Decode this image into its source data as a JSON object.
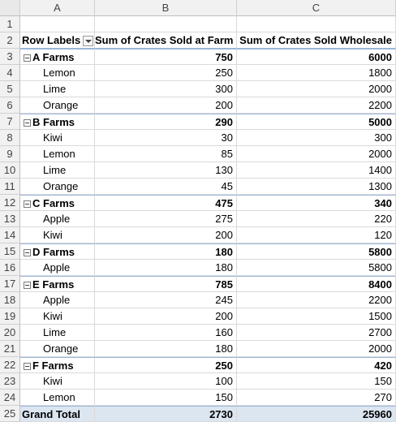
{
  "columns": [
    "A",
    "B",
    "C"
  ],
  "pivot": {
    "header": {
      "row_labels": "Row Labels",
      "col_b": "Sum of Crates Sold at Farm",
      "col_c": "Sum of Crates Sold Wholesale"
    },
    "grand_total": {
      "label": "Grand Total",
      "farm": "2730",
      "wholesale": "25960"
    }
  },
  "row_numbers": [
    "1",
    "2",
    "3",
    "4",
    "5",
    "6",
    "7",
    "8",
    "9",
    "10",
    "11",
    "12",
    "13",
    "14",
    "15",
    "16",
    "17",
    "18",
    "19",
    "20",
    "21",
    "22",
    "23",
    "24",
    "25"
  ],
  "rows": [
    {
      "type": "group",
      "label": "A Farms",
      "farm": "750",
      "wholesale": "6000"
    },
    {
      "type": "item",
      "label": "Lemon",
      "farm": "250",
      "wholesale": "1800"
    },
    {
      "type": "item",
      "label": "Lime",
      "farm": "300",
      "wholesale": "2000"
    },
    {
      "type": "item",
      "label": "Orange",
      "farm": "200",
      "wholesale": "2200"
    },
    {
      "type": "group",
      "label": "B Farms",
      "farm": "290",
      "wholesale": "5000"
    },
    {
      "type": "item",
      "label": "Kiwi",
      "farm": "30",
      "wholesale": "300"
    },
    {
      "type": "item",
      "label": "Lemon",
      "farm": "85",
      "wholesale": "2000"
    },
    {
      "type": "item",
      "label": "Lime",
      "farm": "130",
      "wholesale": "1400"
    },
    {
      "type": "item",
      "label": "Orange",
      "farm": "45",
      "wholesale": "1300"
    },
    {
      "type": "group",
      "label": "C Farms",
      "farm": "475",
      "wholesale": "340"
    },
    {
      "type": "item",
      "label": "Apple",
      "farm": "275",
      "wholesale": "220"
    },
    {
      "type": "item",
      "label": "Kiwi",
      "farm": "200",
      "wholesale": "120"
    },
    {
      "type": "group",
      "label": "D Farms",
      "farm": "180",
      "wholesale": "5800"
    },
    {
      "type": "item",
      "label": "Apple",
      "farm": "180",
      "wholesale": "5800"
    },
    {
      "type": "group",
      "label": "E Farms",
      "farm": "785",
      "wholesale": "8400"
    },
    {
      "type": "item",
      "label": "Apple",
      "farm": "245",
      "wholesale": "2200"
    },
    {
      "type": "item",
      "label": "Kiwi",
      "farm": "200",
      "wholesale": "1500"
    },
    {
      "type": "item",
      "label": "Lime",
      "farm": "160",
      "wholesale": "2700"
    },
    {
      "type": "item",
      "label": "Orange",
      "farm": "180",
      "wholesale": "2000"
    },
    {
      "type": "group",
      "label": "F Farms",
      "farm": "250",
      "wholesale": "420"
    },
    {
      "type": "item",
      "label": "Kiwi",
      "farm": "100",
      "wholesale": "150"
    },
    {
      "type": "item",
      "label": "Lemon",
      "farm": "150",
      "wholesale": "270"
    }
  ]
}
